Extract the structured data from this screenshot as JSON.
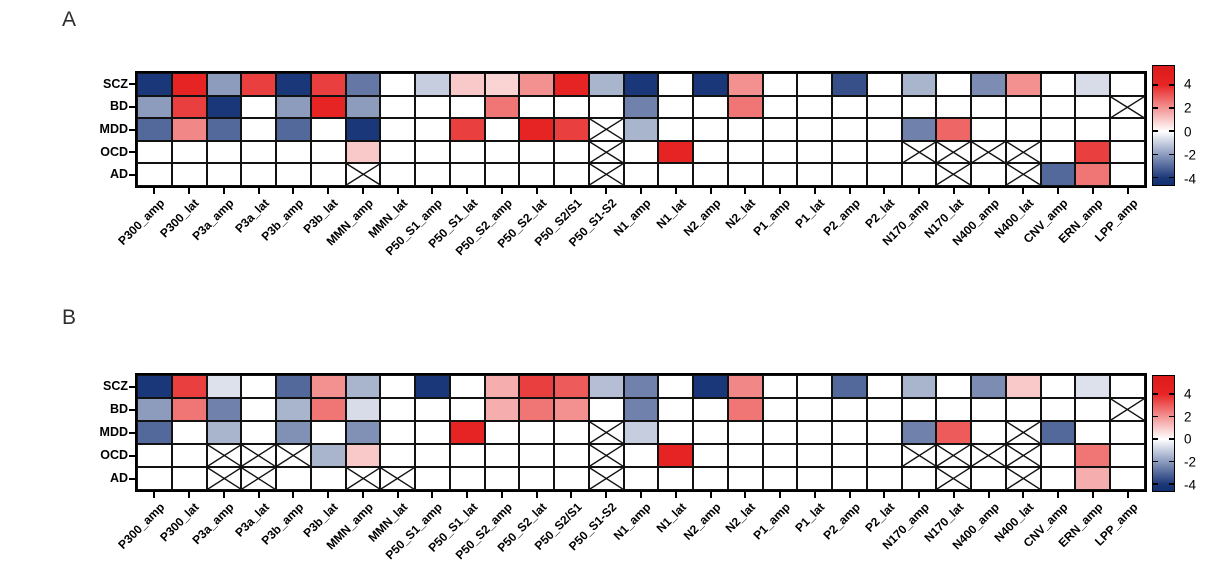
{
  "panel_labels": [
    "A",
    "B"
  ],
  "colorbar": {
    "tick_labels": [
      "4",
      "2",
      "0",
      "-2",
      "-4"
    ],
    "max_color": "#E61919",
    "zero_color": "#FFFFFF",
    "min_color": "#0F2D73"
  },
  "chart_data": [
    {
      "type": "heatmap",
      "title": "A",
      "x_categories": [
        "P300_amp",
        "P300_lat",
        "P3a_amp",
        "P3a_lat",
        "P3b_amp",
        "P3b_lat",
        "MMN_amp",
        "MMN_lat",
        "P50_S1_amp",
        "P50_S1_lat",
        "P50_S2_amp",
        "P50_S2_lat",
        "P50_S2/S1",
        "P50_S1-S2",
        "N1_amp",
        "N1_lat",
        "N2_amp",
        "N2_lat",
        "P1_amp",
        "P1_lat",
        "P2_amp",
        "P2_lat",
        "N170_amp",
        "N170_lat",
        "N400_amp",
        "N400_lat",
        "CNV_amp",
        "ERN_amp",
        "LPP_amp"
      ],
      "y_categories": [
        "SCZ",
        "BD",
        "MDD",
        "OCD",
        "AD"
      ],
      "value_range": [
        -4,
        4
      ],
      "legend_position": "right",
      "values": [
        [
          -4,
          4,
          -2,
          3.5,
          -4,
          3.5,
          -2.7,
          0,
          -1,
          1,
          0.8,
          2,
          4,
          -1.5,
          -4,
          0,
          -4,
          2,
          0,
          0,
          -3.5,
          0,
          -1.5,
          0,
          -2.3,
          2,
          0,
          -0.7,
          0
        ],
        [
          -2,
          3.5,
          -4,
          0,
          -2,
          4,
          -2,
          0,
          0,
          0,
          2.5,
          0,
          0,
          0,
          -2.5,
          0,
          0,
          2.5,
          0,
          0,
          0,
          0,
          0,
          0,
          0,
          0,
          0,
          0,
          "x"
        ],
        [
          -3,
          2.2,
          -3,
          0,
          -3,
          0,
          -4,
          0,
          0,
          3.5,
          0,
          4,
          3.5,
          "x",
          -1.5,
          0,
          0,
          0,
          0,
          0,
          0,
          0,
          -2.5,
          2.8,
          0,
          0,
          0,
          0,
          0
        ],
        [
          0,
          0,
          0,
          0,
          0,
          0,
          1,
          0,
          0,
          0,
          0,
          0,
          0,
          "x",
          0,
          4,
          0,
          0,
          0,
          0,
          0,
          0,
          "x",
          "x",
          "x",
          "x",
          0,
          3.5,
          0
        ],
        [
          0,
          0,
          0,
          0,
          0,
          0,
          "x",
          0,
          0,
          0,
          0,
          0,
          0,
          "x",
          0,
          0,
          0,
          0,
          0,
          0,
          0,
          0,
          0,
          "x",
          0,
          "x",
          -3,
          2.5,
          0
        ]
      ]
    },
    {
      "type": "heatmap",
      "title": "B",
      "x_categories": [
        "P300_amp",
        "P300_lat",
        "P3a_amp",
        "P3a_lat",
        "P3b_amp",
        "P3b_lat",
        "MMN_amp",
        "MMN_lat",
        "P50_S1_amp",
        "P50_S1_lat",
        "P50_S2_amp",
        "P50_S2_lat",
        "P50_S2/S1",
        "P50_S1-S2",
        "N1_amp",
        "N1_lat",
        "N2_amp",
        "N2_lat",
        "P1_amp",
        "P1_lat",
        "P2_amp",
        "P2_lat",
        "N170_amp",
        "N170_lat",
        "N400_amp",
        "N400_lat",
        "CNV_amp",
        "ERN_amp",
        "LPP_amp"
      ],
      "y_categories": [
        "SCZ",
        "BD",
        "MDD",
        "OCD",
        "AD"
      ],
      "value_range": [
        -4,
        4
      ],
      "legend_position": "right",
      "values": [
        [
          -4,
          3.5,
          -0.6,
          0,
          -3,
          2,
          -1.5,
          0,
          -4,
          0,
          1.5,
          3.5,
          3,
          -1.3,
          -2.5,
          0,
          -4,
          2.2,
          0,
          0,
          -3,
          0,
          -1.5,
          0,
          -2.3,
          1,
          0,
          -0.6,
          0
        ],
        [
          -2,
          2.5,
          -2.5,
          0,
          -1.5,
          2.5,
          -0.7,
          0,
          0,
          0,
          1.5,
          2.5,
          2,
          0,
          -2.5,
          0,
          0,
          2.5,
          0,
          0,
          0,
          0,
          0,
          0,
          0,
          0,
          0,
          0,
          "x"
        ],
        [
          -3,
          0,
          -1.5,
          0,
          -2.2,
          0,
          -2.2,
          0,
          0,
          4,
          0,
          0,
          0,
          "x",
          -1,
          0,
          0,
          0,
          0,
          0,
          0,
          0,
          -2.5,
          3,
          0,
          "x",
          -3,
          0,
          0
        ],
        [
          0,
          0,
          "x",
          "x",
          "x",
          -1.5,
          1,
          0,
          0,
          0,
          0,
          0,
          0,
          "x",
          0,
          4,
          0,
          0,
          0,
          0,
          0,
          0,
          "x",
          "x",
          "x",
          "x",
          0,
          2.5,
          0
        ],
        [
          0,
          0,
          "x",
          "x",
          0,
          0,
          "x",
          "x",
          0,
          0,
          0,
          0,
          0,
          "x",
          0,
          0,
          0,
          0,
          0,
          0,
          0,
          0,
          0,
          "x",
          0,
          "x",
          0,
          1.5,
          0
        ]
      ]
    }
  ]
}
